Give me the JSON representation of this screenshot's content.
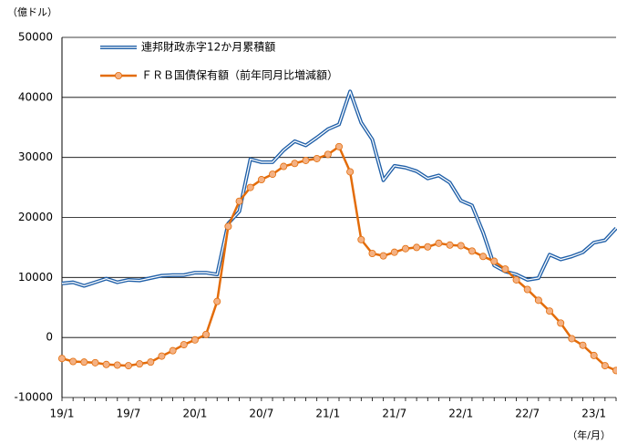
{
  "chart_data": {
    "type": "line",
    "y_unit_label": "（億ドル）",
    "x_unit_label": "（年/月）",
    "categories": [
      "19/1",
      null,
      null,
      null,
      null,
      null,
      "19/7",
      null,
      null,
      null,
      null,
      null,
      "20/1",
      null,
      null,
      null,
      null,
      null,
      "20/7",
      null,
      null,
      null,
      null,
      null,
      "21/1",
      null,
      null,
      null,
      null,
      null,
      "21/7",
      null,
      null,
      null,
      null,
      null,
      "22/1",
      null,
      null,
      null,
      null,
      null,
      "22/7",
      null,
      null,
      null,
      null,
      null,
      "23/1",
      null,
      null
    ],
    "series": [
      {
        "name": "連邦財政赤字12か月累積額",
        "color": "#1f5fa8",
        "values": [
          9000,
          9200,
          8600,
          9200,
          9800,
          9200,
          9600,
          9500,
          9900,
          10300,
          10400,
          10400,
          10800,
          10800,
          10500,
          19000,
          21000,
          29700,
          29200,
          29200,
          31200,
          32700,
          32000,
          33300,
          34700,
          35500,
          41000,
          35800,
          33000,
          26200,
          28600,
          28300,
          27700,
          26500,
          27000,
          25800,
          22800,
          22000,
          17500,
          12000,
          11000,
          10500,
          9600,
          9900,
          13800,
          13000,
          13500,
          14200,
          15800,
          16200,
          18200
        ]
      },
      {
        "name": "ＦＲＢ国債保有額（前年同月比増減額）",
        "color": "#e36c0a",
        "marker_color": "#f4b183",
        "values": [
          -3500,
          -4000,
          -4100,
          -4200,
          -4500,
          -4600,
          -4700,
          -4400,
          -4100,
          -3100,
          -2200,
          -1200,
          -400,
          500,
          6000,
          18500,
          22700,
          25000,
          26300,
          27200,
          28500,
          29000,
          29500,
          29800,
          30500,
          31800,
          27600,
          16300,
          14000,
          13600,
          14200,
          14800,
          15000,
          15100,
          15700,
          15400,
          15300,
          14400,
          13500,
          12700,
          11400,
          9600,
          8000,
          6200,
          4400,
          2400,
          -200,
          -1300,
          -3000,
          -4700,
          -5500
        ]
      }
    ],
    "ylim": [
      -10000,
      50000
    ],
    "yticks": [
      -10000,
      0,
      10000,
      20000,
      30000,
      40000,
      50000
    ],
    "grid": true
  }
}
